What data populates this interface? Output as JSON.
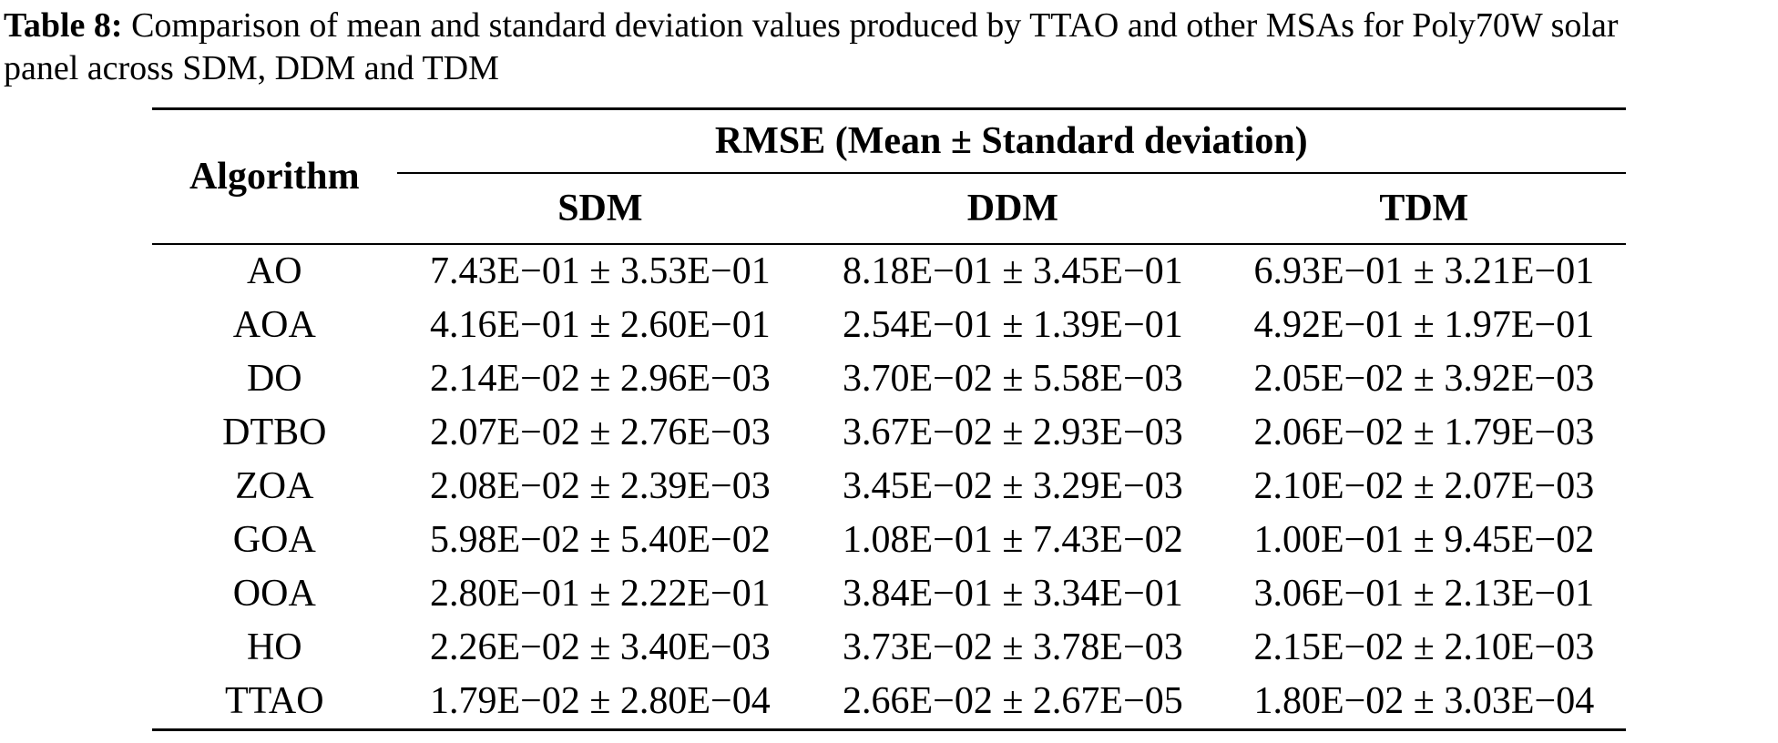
{
  "page": {
    "background_color": "#ffffff",
    "text_color": "#000000"
  },
  "caption": {
    "label": "Table 8:",
    "line1_rest": "Comparison of mean and standard deviation values produced by TTAO and other MSAs for Poly70W solar",
    "line2": "panel across SDM, DDM and TDM"
  },
  "table": {
    "algorithm_header": "Algorithm",
    "group_header": "RMSE (Mean ± Standard deviation)",
    "columns": [
      "SDM",
      "DDM",
      "TDM"
    ],
    "rows": [
      {
        "algorithm": "AO",
        "sdm": "7.43E−01 ± 3.53E−01",
        "ddm": "8.18E−01 ± 3.45E−01",
        "tdm": "6.93E−01 ± 3.21E−01"
      },
      {
        "algorithm": "AOA",
        "sdm": "4.16E−01 ± 2.60E−01",
        "ddm": "2.54E−01 ± 1.39E−01",
        "tdm": "4.92E−01 ± 1.97E−01"
      },
      {
        "algorithm": "DO",
        "sdm": "2.14E−02 ± 2.96E−03",
        "ddm": "3.70E−02 ± 5.58E−03",
        "tdm": "2.05E−02 ± 3.92E−03"
      },
      {
        "algorithm": "DTBO",
        "sdm": "2.07E−02 ± 2.76E−03",
        "ddm": "3.67E−02 ± 2.93E−03",
        "tdm": "2.06E−02 ± 1.79E−03"
      },
      {
        "algorithm": "ZOA",
        "sdm": "2.08E−02 ± 2.39E−03",
        "ddm": "3.45E−02 ± 3.29E−03",
        "tdm": "2.10E−02 ± 2.07E−03"
      },
      {
        "algorithm": "GOA",
        "sdm": "5.98E−02 ± 5.40E−02",
        "ddm": "1.08E−01 ± 7.43E−02",
        "tdm": "1.00E−01 ± 9.45E−02"
      },
      {
        "algorithm": "OOA",
        "sdm": "2.80E−01 ± 2.22E−01",
        "ddm": "3.84E−01 ± 3.34E−01",
        "tdm": "3.06E−01 ± 2.13E−01"
      },
      {
        "algorithm": "HO",
        "sdm": "2.26E−02 ± 3.40E−03",
        "ddm": "3.73E−02 ± 3.78E−03",
        "tdm": "2.15E−02 ± 2.10E−03"
      },
      {
        "algorithm": "TTAO",
        "sdm": "1.79E−02 ± 2.80E−04",
        "ddm": "2.66E−02 ± 2.67E−05",
        "tdm": "1.80E−02 ± 3.03E−04"
      }
    ]
  }
}
